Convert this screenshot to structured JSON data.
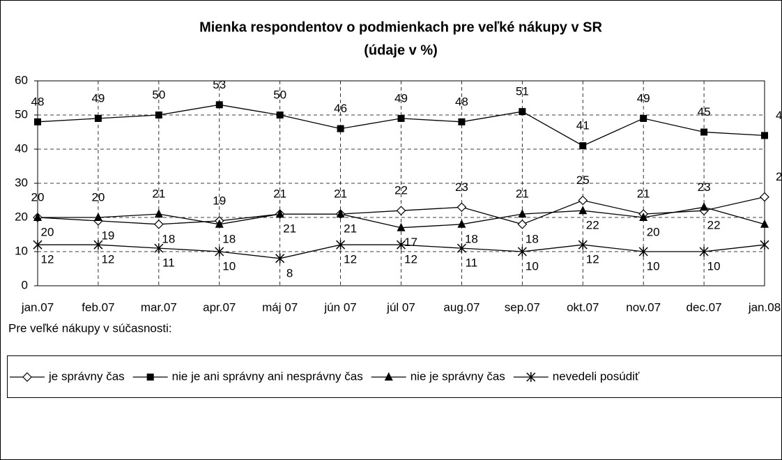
{
  "chart_data": {
    "type": "line",
    "title": "Mienka respondentov o podmienkach pre veľké nákupy v SR",
    "subtitle": "(údaje v %)",
    "note": "Pre veľké nákupy v súčasnosti:",
    "categories": [
      "jan.07",
      "feb.07",
      "mar.07",
      "apr.07",
      "máj 07",
      "jún 07",
      "júl 07",
      "aug.07",
      "sep.07",
      "okt.07",
      "nov.07",
      "dec.07",
      "jan.08"
    ],
    "series": [
      {
        "name": "je správny čas",
        "color": "#000000",
        "marker": "diamond",
        "values": [
          20,
          19,
          18,
          19,
          21,
          21,
          22,
          23,
          18,
          25,
          21,
          22,
          26
        ]
      },
      {
        "name": "nie je ani správny ani nesprávny čas",
        "color": "#000000",
        "marker": "square",
        "values": [
          48,
          49,
          50,
          53,
          50,
          46,
          49,
          48,
          51,
          41,
          49,
          45,
          44
        ]
      },
      {
        "name": "nie je správny čas",
        "color": "#000000",
        "marker": "triangle",
        "values": [
          20,
          20,
          21,
          18,
          21,
          21,
          17,
          18,
          21,
          22,
          20,
          23,
          18
        ]
      },
      {
        "name": "nevedeli posúdiť",
        "color": "#000000",
        "marker": "star",
        "values": [
          12,
          12,
          11,
          10,
          8,
          12,
          12,
          11,
          10,
          12,
          10,
          10,
          12
        ]
      }
    ],
    "ylim": [
      0,
      60
    ],
    "yticks": [
      0,
      10,
      20,
      30,
      40,
      50,
      60
    ],
    "grid": true
  }
}
